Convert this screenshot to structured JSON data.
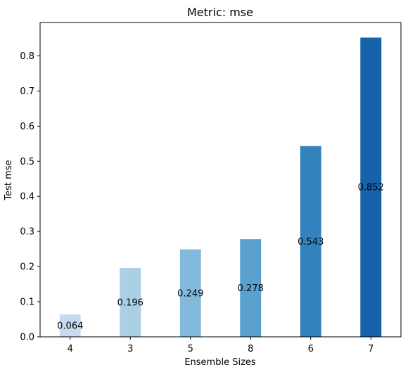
{
  "chart_data": {
    "type": "bar",
    "title": "Metric: mse",
    "xlabel": "Ensemble Sizes",
    "ylabel": "Test mse",
    "categories": [
      "4",
      "3",
      "5",
      "8",
      "6",
      "7"
    ],
    "values": [
      0.064,
      0.196,
      0.249,
      0.278,
      0.543,
      0.852
    ],
    "value_labels": [
      "0.064",
      "0.196",
      "0.249",
      "0.278",
      "0.543",
      "0.852"
    ],
    "bar_colors": [
      "#c6dbef",
      "#abd0e6",
      "#82badb",
      "#59a1cf",
      "#3282be",
      "#1663aa"
    ],
    "ylim": [
      0,
      0.895
    ],
    "yticks": [
      0.0,
      0.1,
      0.2,
      0.3,
      0.4,
      0.5,
      0.6,
      0.7,
      0.8
    ],
    "ytick_labels": [
      "0.0",
      "0.1",
      "0.2",
      "0.3",
      "0.4",
      "0.5",
      "0.6",
      "0.7",
      "0.8"
    ],
    "grid": false,
    "legend": "none"
  }
}
